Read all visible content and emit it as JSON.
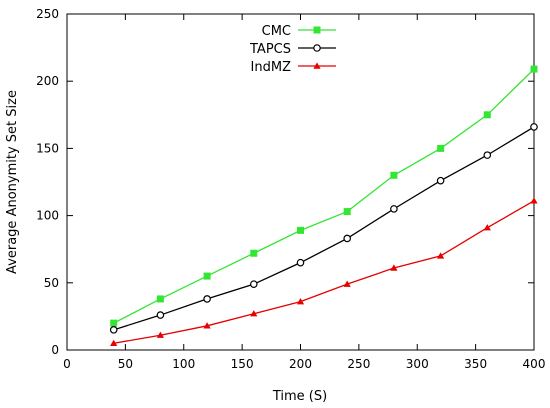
{
  "chart_data": {
    "type": "line",
    "xlabel": "Time (S)",
    "ylabel": "Average Anonymity Set Size",
    "xlim": [
      0,
      400
    ],
    "ylim": [
      0,
      250
    ],
    "xticks": [
      0,
      50,
      100,
      150,
      200,
      250,
      300,
      350,
      400
    ],
    "yticks": [
      0,
      50,
      100,
      150,
      200,
      250
    ],
    "grid": false,
    "legend_position": "top-center",
    "x": [
      40,
      80,
      120,
      160,
      200,
      240,
      280,
      320,
      360,
      400
    ],
    "series": [
      {
        "name": "CMC",
        "color": "#33e633",
        "marker": "filled-square",
        "values": [
          20,
          38,
          55,
          72,
          89,
          103,
          130,
          150,
          175,
          209
        ]
      },
      {
        "name": "TAPCS",
        "color": "#000000",
        "marker": "open-circle",
        "values": [
          15,
          26,
          38,
          49,
          65,
          83,
          105,
          126,
          145,
          166
        ]
      },
      {
        "name": "IndMZ",
        "color": "#e60000",
        "marker": "triangle",
        "values": [
          5,
          11,
          18,
          27,
          36,
          49,
          61,
          70,
          91,
          111
        ]
      }
    ]
  }
}
